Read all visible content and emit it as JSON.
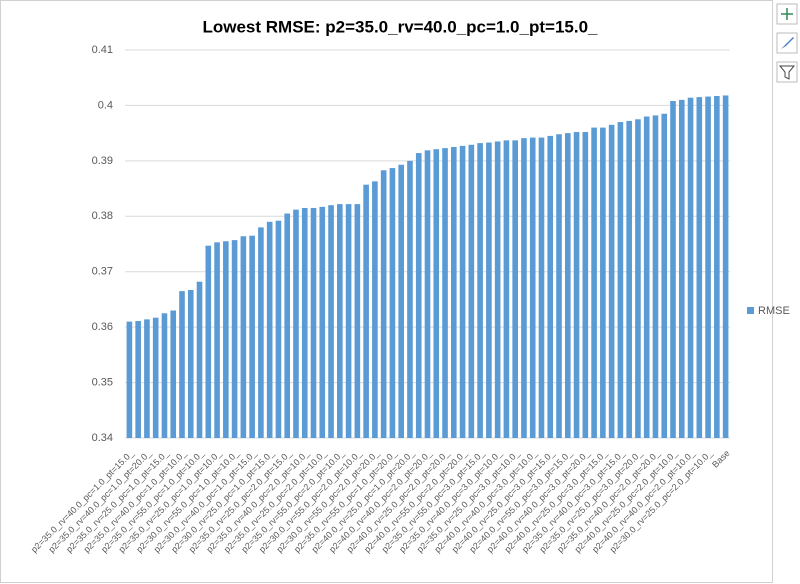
{
  "chart_data": {
    "type": "bar",
    "title": "Lowest RMSE: p2=35.0_rv=40.0_pc=1.0_pt=15.0_",
    "categories": [
      "p2=35.0_rv=40.0_pc=1.0_pt=15.0_",
      null,
      "p2=35.0_rv=40.0_pc=1.0_pt=20.0_",
      null,
      "p2=35.0_rv=25.0_pc=1.0_pt=15.0_",
      null,
      "p2=35.0_rv=40.0_pc=1.0_pt=10.0_",
      null,
      "p2=35.0_rv=55.0_pc=1.0_pt=10.0_",
      null,
      "p2=35.0_rv=25.0_pc=1.0_pt=10.0_",
      null,
      "p2=30.0_rv=55.0_pc=1.0_pt=10.0_",
      null,
      "p2=30.0_rv=40.0_pc=1.0_pt=15.0_",
      null,
      "p2=30.0_rv=25.0_pc=1.0_pt=15.0_",
      null,
      "p2=35.0_rv=25.0_pc=2.0_pt=15.0_",
      null,
      "p2=35.0_rv=40.0_pc=2.0_pt=10.0_",
      null,
      "p2=35.0_rv=25.0_pc=2.0_pt=10.0_",
      null,
      "p2=35.0_rv=55.0_pc=2.0_pt=10.0_",
      null,
      "p2=30.0_rv=55.0_pc=2.0_pt=10.0_",
      null,
      "p2=30.0_rv=55.0_pc=2.0_pt=20.0_",
      null,
      "p2=35.0_rv=55.0_pc=1.0_pt=20.0_",
      null,
      "p2=40.0_rv=25.0_pc=1.0_pt=20.0_",
      null,
      "p2=40.0_rv=40.0_pc=2.0_pt=20.0_",
      null,
      "p2=40.0_rv=25.0_pc=2.0_pt=20.0_",
      null,
      "p2=40.0_rv=55.0_pc=2.0_pt=20.0_",
      null,
      "p2=35.0_rv=55.0_pc=3.0_pt=15.0_",
      null,
      "p2=35.0_rv=40.0_pc=3.0_pt=10.0_",
      null,
      "p2=35.0_rv=25.0_pc=3.0_pt=10.0_",
      null,
      "p2=40.0_rv=40.0_pc=3.0_pt=10.0_",
      null,
      "p2=40.0_rv=25.0_pc=3.0_pt=15.0_",
      null,
      "p2=40.0_rv=55.0_pc=3.0_pt=15.0_",
      null,
      "p2=40.0_rv=40.0_pc=3.0_pt=20.0_",
      null,
      "p2=40.0_rv=25.0_pc=3.0_pt=15.0_",
      null,
      "p2=35.0_rv=40.0_pc=3.0_pt=15.0_",
      null,
      "p2=35.0_rv=25.0_pc=3.0_pt=20.0_",
      null,
      "p2=35.0_rv=40.0_pc=2.0_pt=20.0_",
      null,
      "p2=40.0_rv=25.0_pc=2.0_pt=10.0_",
      null,
      "p2=40.0_rv=40.0_pc=2.0_pt=10.0_",
      null,
      "p2=30.0_rv=25.0_pc=2.0_pt=10.0_",
      null,
      "Base"
    ],
    "series": [
      {
        "name": "RMSE",
        "color": "#5b9bd5",
        "values": [
          0.361,
          0.3611,
          0.3614,
          0.3617,
          0.3625,
          0.363,
          0.3665,
          0.3667,
          0.3682,
          0.3747,
          0.3753,
          0.3755,
          0.3757,
          0.3764,
          0.3765,
          0.378,
          0.379,
          0.3792,
          0.3805,
          0.3812,
          0.3815,
          0.3815,
          0.3817,
          0.382,
          0.3822,
          0.3822,
          0.3822,
          0.3857,
          0.3863,
          0.3883,
          0.3887,
          0.3893,
          0.39,
          0.3914,
          0.3919,
          0.3921,
          0.3923,
          0.3925,
          0.3927,
          0.3929,
          0.3932,
          0.3933,
          0.3935,
          0.3937,
          0.3937,
          0.3941,
          0.3942,
          0.3942,
          0.3945,
          0.3948,
          0.395,
          0.3952,
          0.3952,
          0.396,
          0.396,
          0.3965,
          0.397,
          0.3972,
          0.3975,
          0.398,
          0.3982,
          0.3985,
          0.4008,
          0.401,
          0.4014,
          0.4015,
          0.4016,
          0.4017,
          0.4018
        ]
      }
    ],
    "ylim": [
      0.34,
      0.41
    ],
    "yticks": [
      0.34,
      0.35,
      0.36,
      0.37,
      0.38,
      0.39,
      0.4,
      0.41
    ],
    "grid": true,
    "legend": "right"
  }
}
